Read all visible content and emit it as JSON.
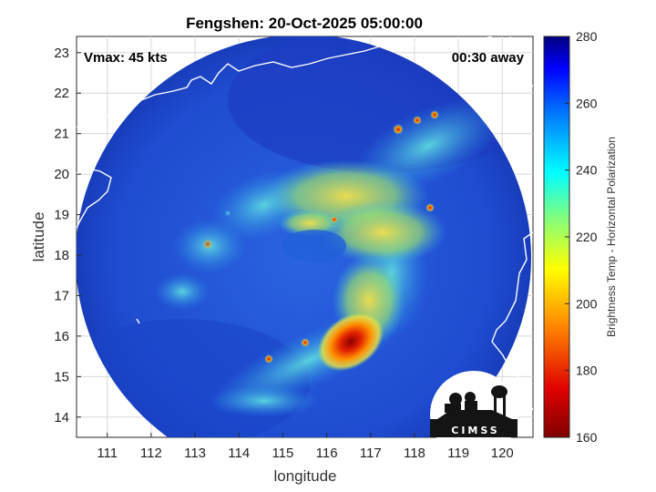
{
  "title": "Fengshen: 20-Oct-2025 05:00:00",
  "vmax_text": "Vmax: 45 kts",
  "time_away_text": "00:30 away",
  "xaxis": {
    "label": "longitude",
    "ticks": [
      "111",
      "112",
      "113",
      "114",
      "115",
      "116",
      "117",
      "118",
      "119",
      "120"
    ]
  },
  "yaxis": {
    "label": "latitude",
    "ticks": [
      "23",
      "22",
      "21",
      "20",
      "19",
      "18",
      "17",
      "16",
      "15",
      "14"
    ]
  },
  "colorbar": {
    "label": "Brightness Temp - Horizontal Polarization",
    "ticks": [
      "280",
      "260",
      "240",
      "220",
      "200",
      "180",
      "160"
    ],
    "min": 160,
    "max": 280
  },
  "logo_text": "CIMSS",
  "map_extent": {
    "lon": [
      110.3,
      120.7
    ],
    "lat": [
      13.5,
      23.4
    ]
  },
  "colors": {
    "cold_core": "#8b0000",
    "warm_background": "#1a3fb8",
    "swath_edge": "#0a1a8c"
  }
}
